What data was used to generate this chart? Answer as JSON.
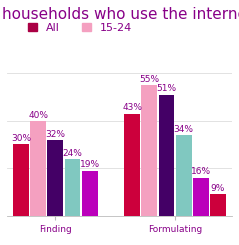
{
  "title": "households who use the internet",
  "title_color": "#880088",
  "title_fontsize": 11,
  "legend_all_color": "#aa0044",
  "legend_1524_color": "#f4a0c0",
  "legend_fontsize": 8,
  "label_color": "#880088",
  "label_fontsize": 6.5,
  "background_color": "#ffffff",
  "group1_values": [
    30,
    40,
    32,
    24,
    19
  ],
  "group1_labels": [
    "30%",
    "40%",
    "32%",
    "24%",
    "19%"
  ],
  "group1_colors": [
    "#cc003c",
    "#f4a0c0",
    "#440066",
    "#80c8c0",
    "#bb00bb"
  ],
  "group2_values": [
    43,
    55,
    51,
    34,
    16,
    9
  ],
  "group2_labels": [
    "43%",
    "55%",
    "51%",
    "34%",
    "16%",
    "9%"
  ],
  "group2_colors": [
    "#cc003c",
    "#f4a0c0",
    "#440066",
    "#80c8c0",
    "#bb00bb",
    "#cc003c"
  ],
  "xtick_labels": [
    "Finding",
    "Formulating"
  ],
  "xtick_fontsize": 6.5,
  "xtick_color": "#880088",
  "ylim": [
    0,
    62
  ],
  "grid_color": "#dddddd",
  "grid_vals": [
    20,
    40,
    60
  ]
}
